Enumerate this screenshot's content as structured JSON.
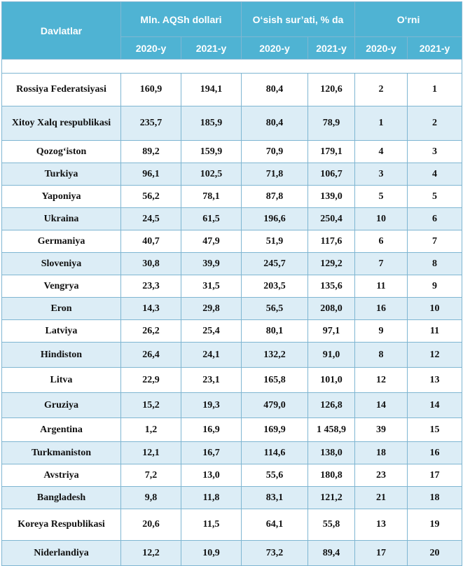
{
  "header": {
    "country": "Davlatlar",
    "value_group": "Mln. AQSh dollari",
    "growth_group": "O‘sish sur’ati, % da",
    "rank_group": "O‘rni",
    "year_2020": "2020-y",
    "year_2021": "2021-y"
  },
  "rows": [
    {
      "country": "Rossiya Federatsiyasi",
      "v2020": "160,9",
      "v2021": "194,1",
      "g2020": "80,4",
      "g2021": "120,6",
      "r2020": "2",
      "r2021": "1"
    },
    {
      "country": "Xitoy Xalq respublikasi",
      "v2020": "235,7",
      "v2021": "185,9",
      "g2020": "80,4",
      "g2021": "78,9",
      "r2020": "1",
      "r2021": "2"
    },
    {
      "country": "Qozog‘iston",
      "v2020": "89,2",
      "v2021": "159,9",
      "g2020": "70,9",
      "g2021": "179,1",
      "r2020": "4",
      "r2021": "3"
    },
    {
      "country": "Turkiya",
      "v2020": "96,1",
      "v2021": "102,5",
      "g2020": "71,8",
      "g2021": "106,7",
      "r2020": "3",
      "r2021": "4"
    },
    {
      "country": "Yaponiya",
      "v2020": "56,2",
      "v2021": "78,1",
      "g2020": "87,8",
      "g2021": "139,0",
      "r2020": "5",
      "r2021": "5"
    },
    {
      "country": "Ukraina",
      "v2020": "24,5",
      "v2021": "61,5",
      "g2020": "196,6",
      "g2021": "250,4",
      "r2020": "10",
      "r2021": "6"
    },
    {
      "country": "Germaniya",
      "v2020": "40,7",
      "v2021": "47,9",
      "g2020": "51,9",
      "g2021": "117,6",
      "r2020": "6",
      "r2021": "7"
    },
    {
      "country": "Sloveniya",
      "v2020": "30,8",
      "v2021": "39,9",
      "g2020": "245,7",
      "g2021": "129,2",
      "r2020": "7",
      "r2021": "8"
    },
    {
      "country": "Vengrya",
      "v2020": "23,3",
      "v2021": "31,5",
      "g2020": "203,5",
      "g2021": "135,6",
      "r2020": "11",
      "r2021": "9"
    },
    {
      "country": "Eron",
      "v2020": "14,3",
      "v2021": "29,8",
      "g2020": "56,5",
      "g2021": "208,0",
      "r2020": "16",
      "r2021": "10"
    },
    {
      "country": "Latviya",
      "v2020": "26,2",
      "v2021": "25,4",
      "g2020": "80,1",
      "g2021": "97,1",
      "r2020": "9",
      "r2021": "11"
    },
    {
      "country": "Hindiston",
      "v2020": "26,4",
      "v2021": "24,1",
      "g2020": "132,2",
      "g2021": "91,0",
      "r2020": "8",
      "r2021": "12"
    },
    {
      "country": "Litva",
      "v2020": "22,9",
      "v2021": "23,1",
      "g2020": "165,8",
      "g2021": "101,0",
      "r2020": "12",
      "r2021": "13"
    },
    {
      "country": "Gruziya",
      "v2020": "15,2",
      "v2021": "19,3",
      "g2020": "479,0",
      "g2021": "126,8",
      "r2020": "14",
      "r2021": "14"
    },
    {
      "country": "Argentina",
      "v2020": "1,2",
      "v2021": "16,9",
      "g2020": "169,9",
      "g2021": "1 458,9",
      "r2020": "39",
      "r2021": "15"
    },
    {
      "country": "Turkmaniston",
      "v2020": "12,1",
      "v2021": "16,7",
      "g2020": "114,6",
      "g2021": "138,0",
      "r2020": "18",
      "r2021": "16"
    },
    {
      "country": "Avstriya",
      "v2020": "7,2",
      "v2021": "13,0",
      "g2020": "55,6",
      "g2021": "180,8",
      "r2020": "23",
      "r2021": "17"
    },
    {
      "country": "Bangladesh",
      "v2020": "9,8",
      "v2021": "11,8",
      "g2020": "83,1",
      "g2021": "121,2",
      "r2020": "21",
      "r2021": "18"
    },
    {
      "country": "Koreya Respublikasi",
      "v2020": "20,6",
      "v2021": "11,5",
      "g2020": "64,1",
      "g2021": "55,8",
      "r2020": "13",
      "r2021": "19"
    },
    {
      "country": "Niderlandiya",
      "v2020": "12,2",
      "v2021": "10,9",
      "g2020": "73,2",
      "g2021": "89,4",
      "r2020": "17",
      "r2021": "20"
    }
  ],
  "colors": {
    "header_bg": "#4fb3d3",
    "header_text": "#ffffff",
    "row_alt_bg": "#dcedf6",
    "border": "#7fb6d2"
  }
}
